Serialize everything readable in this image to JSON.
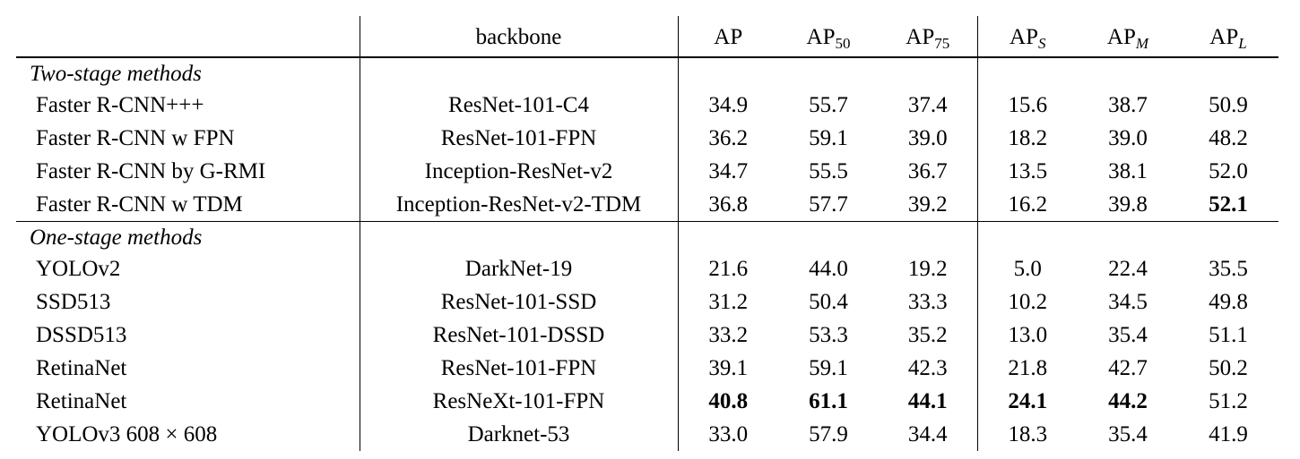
{
  "header": {
    "backbone": "backbone",
    "ap": "AP",
    "ap50_base": "AP",
    "ap50_sub": "50",
    "ap75_base": "AP",
    "ap75_sub": "75",
    "aps_base": "AP",
    "aps_sub": "S",
    "apm_base": "AP",
    "apm_sub": "M",
    "apl_base": "AP",
    "apl_sub": "L"
  },
  "groups": [
    {
      "label": "Two-stage methods",
      "rows": [
        {
          "method": "Faster R-CNN+++",
          "backbone": "ResNet-101-C4",
          "ap": "34.9",
          "ap50": "55.7",
          "ap75": "37.4",
          "aps": "15.6",
          "apm": "38.7",
          "apl": "50.9"
        },
        {
          "method": "Faster R-CNN w FPN",
          "backbone": "ResNet-101-FPN",
          "ap": "36.2",
          "ap50": "59.1",
          "ap75": "39.0",
          "aps": "18.2",
          "apm": "39.0",
          "apl": "48.2"
        },
        {
          "method": "Faster R-CNN by G-RMI",
          "backbone": "Inception-ResNet-v2",
          "ap": "34.7",
          "ap50": "55.5",
          "ap75": "36.7",
          "aps": "13.5",
          "apm": "38.1",
          "apl": "52.0"
        },
        {
          "method": "Faster R-CNN w TDM",
          "backbone": "Inception-ResNet-v2-TDM",
          "ap": "36.8",
          "ap50": "57.7",
          "ap75": "39.2",
          "aps": "16.2",
          "apm": "39.8",
          "apl": "52.1"
        }
      ]
    },
    {
      "label": "One-stage methods",
      "rows": [
        {
          "method": "YOLOv2",
          "backbone": "DarkNet-19",
          "ap": "21.6",
          "ap50": "44.0",
          "ap75": "19.2",
          "aps": "5.0",
          "apm": "22.4",
          "apl": "35.5"
        },
        {
          "method": "SSD513",
          "backbone": "ResNet-101-SSD",
          "ap": "31.2",
          "ap50": "50.4",
          "ap75": "33.3",
          "aps": "10.2",
          "apm": "34.5",
          "apl": "49.8"
        },
        {
          "method": "DSSD513",
          "backbone": "ResNet-101-DSSD",
          "ap": "33.2",
          "ap50": "53.3",
          "ap75": "35.2",
          "aps": "13.0",
          "apm": "35.4",
          "apl": "51.1"
        },
        {
          "method": "RetinaNet",
          "backbone": "ResNet-101-FPN",
          "ap": "39.1",
          "ap50": "59.1",
          "ap75": "42.3",
          "aps": "21.8",
          "apm": "42.7",
          "apl": "50.2"
        },
        {
          "method": "RetinaNet",
          "backbone": "ResNeXt-101-FPN",
          "ap": "40.8",
          "ap50": "61.1",
          "ap75": "44.1",
          "aps": "24.1",
          "apm": "44.2",
          "apl": "51.2"
        },
        {
          "method": "YOLOv3 608 × 608",
          "backbone": "Darknet-53",
          "ap": "33.0",
          "ap50": "57.9",
          "ap75": "34.4",
          "aps": "18.3",
          "apm": "35.4",
          "apl": "41.9"
        }
      ]
    }
  ]
}
